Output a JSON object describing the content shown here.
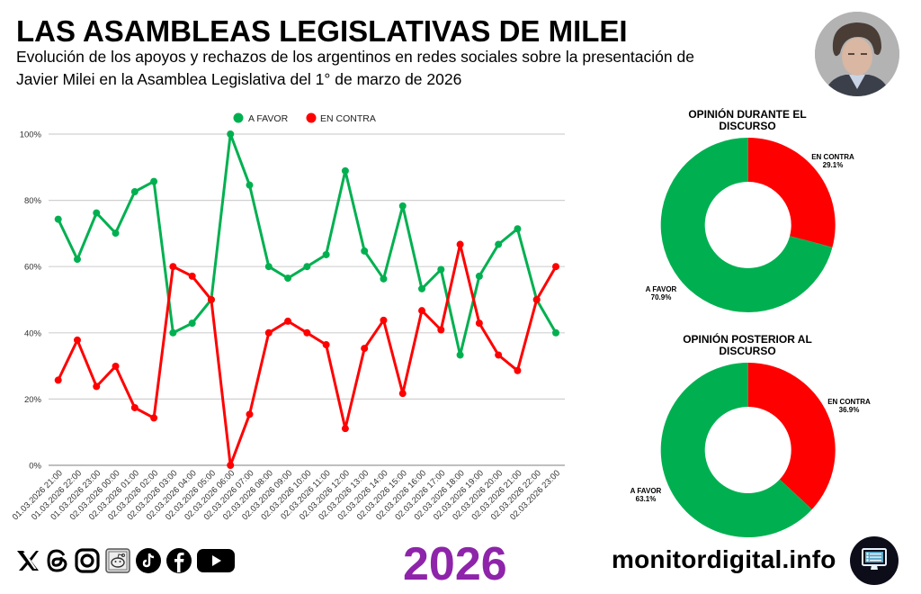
{
  "header": {
    "title": "LAS ASAMBLEAS LEGISLATIVAS DE MILEI",
    "subtitle_line1": "Evolución de los apoyos y rechazos de los argentinos en redes sociales sobre la presentación de",
    "subtitle_line2": "Javier Milei en la Asamblea Legislativa del 1° de marzo de 2026"
  },
  "colors": {
    "favor": "#00b050",
    "contra": "#ff0000",
    "year": "#8e24aa",
    "grid": "#cccccc"
  },
  "chart_data": [
    {
      "type": "line",
      "title": "",
      "xlabel": "",
      "ylabel": "",
      "ylim": [
        0,
        100
      ],
      "yticks": [
        "0%",
        "20%",
        "40%",
        "60%",
        "80%",
        "100%"
      ],
      "ytick_values": [
        0,
        20,
        40,
        60,
        80,
        100
      ],
      "grid": true,
      "legend_position": "top-center",
      "categories": [
        "01.03.2026 21:00",
        "01.03.2026 22:00",
        "01.03.2026 23:00",
        "02.03.2026 00:00",
        "02.03.2026 01:00",
        "02.03.2026 02:00",
        "02.03.2026 03:00",
        "02.03.2026 04:00",
        "02.03.2026 05:00",
        "02.03.2026 06:00",
        "02.03.2026 07:00",
        "02.03.2026 08:00",
        "02.03.2026 09:00",
        "02.03.2026 10:00",
        "02.03.2026 11:00",
        "02.03.2026 12:00",
        "02.03.2026 13:00",
        "02.03.2026 14:00",
        "02.03.2026 15:00",
        "02.03.2026 16:00",
        "02.03.2026 17:00",
        "02.03.2026 18:00",
        "02.03.2026 19:00",
        "02.03.2026 20:00",
        "02.03.2026 21:00",
        "02.03.2026 22:00",
        "02.03.2026 23:00"
      ],
      "series": [
        {
          "name": "A FAVOR",
          "color": "#00b050",
          "values": [
            74.3,
            62.2,
            76.2,
            70.1,
            82.6,
            85.7,
            40.0,
            42.9,
            50.0,
            100.0,
            84.6,
            60.0,
            56.5,
            60.0,
            63.6,
            88.9,
            64.7,
            56.3,
            78.3,
            53.3,
            59.1,
            33.3,
            57.1,
            66.7,
            71.4,
            50.0,
            40.0
          ]
        },
        {
          "name": "EN CONTRA",
          "color": "#ff0000",
          "values": [
            25.7,
            37.8,
            23.8,
            29.9,
            17.4,
            14.3,
            60.0,
            57.1,
            50.0,
            0.0,
            15.4,
            40.0,
            43.5,
            40.0,
            36.4,
            11.1,
            35.3,
            43.8,
            21.7,
            46.7,
            40.9,
            66.7,
            42.9,
            33.3,
            28.6,
            50.0,
            60.0
          ]
        }
      ]
    },
    {
      "type": "pie",
      "donut": true,
      "title_line1": "OPINIÓN DURANTE EL",
      "title_line2": "DISCURSO",
      "slices": [
        {
          "label": "EN CONTRA",
          "value": 29.1,
          "display": "29.1%",
          "color": "#ff0000"
        },
        {
          "label": "A FAVOR",
          "value": 70.9,
          "display": "70.9%",
          "color": "#00b050"
        }
      ]
    },
    {
      "type": "pie",
      "donut": true,
      "title_line1": "OPINIÓN POSTERIOR AL",
      "title_line2": "DISCURSO",
      "slices": [
        {
          "label": "EN CONTRA",
          "value": 36.9,
          "display": "36.9%",
          "color": "#ff0000"
        },
        {
          "label": "A FAVOR",
          "value": 63.1,
          "display": "63.1%",
          "color": "#00b050"
        }
      ]
    }
  ],
  "footer": {
    "social_icons": [
      "x-icon",
      "threads-icon",
      "instagram-icon",
      "reddit-icon",
      "tiktok-icon",
      "facebook-icon",
      "youtube-icon"
    ],
    "year": "2026",
    "site": "monitordigital.info",
    "site_logo_icon": "monitor-icon"
  }
}
